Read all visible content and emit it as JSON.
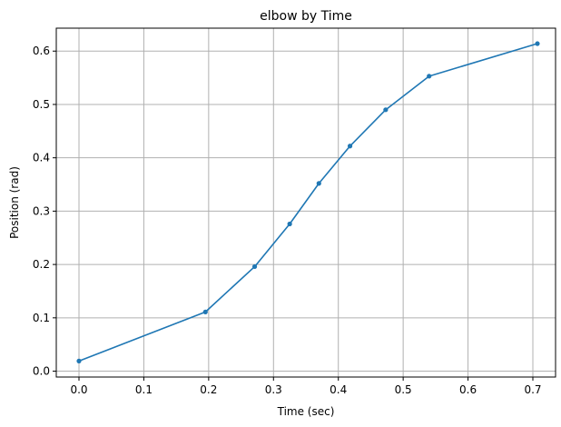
{
  "chart_data": {
    "type": "line",
    "title": "elbow by Time",
    "xlabel": "Time (sec)",
    "ylabel": "Position (rad)",
    "xlim": [
      -0.035,
      0.735
    ],
    "ylim": [
      -0.011,
      0.643
    ],
    "xticks": [
      0.0,
      0.1,
      0.2,
      0.3,
      0.4,
      0.5,
      0.6,
      0.7
    ],
    "xtick_labels": [
      "0.0",
      "0.1",
      "0.2",
      "0.3",
      "0.4",
      "0.5",
      "0.6",
      "0.7"
    ],
    "yticks": [
      0.0,
      0.1,
      0.2,
      0.3,
      0.4,
      0.5,
      0.6
    ],
    "ytick_labels": [
      "0.0",
      "0.1",
      "0.2",
      "0.3",
      "0.4",
      "0.5",
      "0.6"
    ],
    "grid": true,
    "series": [
      {
        "color": "#1f77b4",
        "marker": "circle",
        "x": [
          0.0,
          0.195,
          0.271,
          0.325,
          0.37,
          0.418,
          0.473,
          0.54,
          0.707
        ],
        "y": [
          0.019,
          0.111,
          0.196,
          0.276,
          0.352,
          0.422,
          0.49,
          0.553,
          0.614
        ]
      }
    ]
  }
}
